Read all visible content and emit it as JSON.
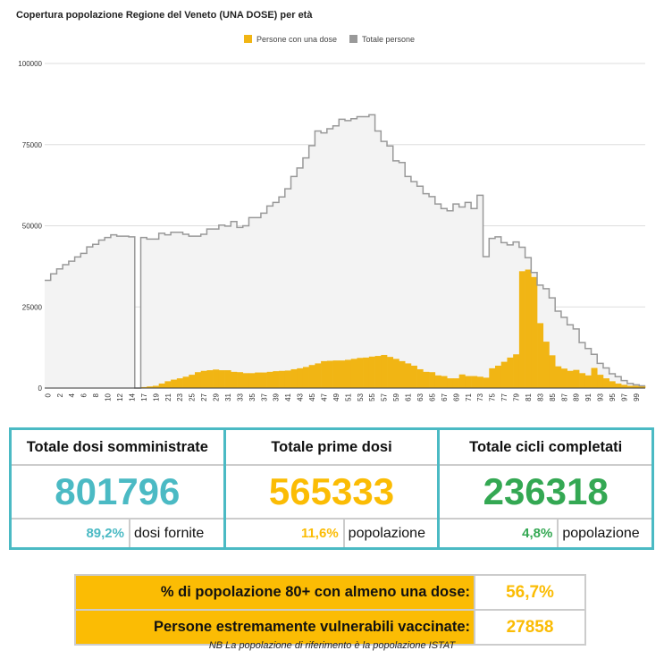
{
  "chart_data": {
    "type": "area",
    "title": "Copertura popolazione Regione del Veneto (UNA DOSE) per età",
    "legend_position": "top",
    "ylim": [
      0,
      100000
    ],
    "yticks": [
      "0",
      "25000",
      "50000",
      "75000",
      "100000"
    ],
    "grid": true,
    "categories": [
      "0",
      "1",
      "2",
      "3",
      "4",
      "5",
      "6",
      "7",
      "8",
      "9",
      "10",
      "11",
      "12",
      "13",
      "14",
      "16",
      "17",
      "18",
      "19",
      "20",
      "21",
      "22",
      "23",
      "24",
      "25",
      "26",
      "27",
      "28",
      "29",
      "30",
      "31",
      "32",
      "33",
      "34",
      "35",
      "36",
      "37",
      "38",
      "39",
      "40",
      "41",
      "42",
      "43",
      "44",
      "45",
      "46",
      "47",
      "48",
      "49",
      "50",
      "51",
      "52",
      "53",
      "54",
      "55",
      "56",
      "57",
      "58",
      "59",
      "60",
      "61",
      "62",
      "63",
      "64",
      "65",
      "66",
      "67",
      "68",
      "69",
      "70",
      "71",
      "72",
      "73",
      "74",
      "75",
      "76",
      "77",
      "78",
      "79",
      "80",
      "81",
      "82",
      "83",
      "84",
      "85",
      "86",
      "87",
      "88",
      "89",
      "90",
      "91",
      "92",
      "93",
      "94",
      "95",
      "96",
      "97",
      "98",
      "99",
      "100"
    ],
    "series": [
      {
        "name": "Persone con una dose",
        "color": "#f1b514",
        "values": [
          0,
          0,
          0,
          0,
          0,
          0,
          0,
          0,
          0,
          0,
          0,
          0,
          0,
          0,
          0,
          0,
          300,
          500,
          700,
          1400,
          2100,
          2600,
          3000,
          3500,
          4100,
          4900,
          5300,
          5500,
          5700,
          5500,
          5500,
          5000,
          4900,
          4600,
          4600,
          4800,
          4800,
          5000,
          5200,
          5300,
          5400,
          5800,
          6100,
          6500,
          7100,
          7600,
          8300,
          8400,
          8500,
          8500,
          8700,
          9000,
          9300,
          9400,
          9700,
          9900,
          10200,
          9600,
          9000,
          8300,
          7600,
          6900,
          5800,
          5000,
          4900,
          3900,
          3700,
          3000,
          3000,
          4200,
          3700,
          3700,
          3500,
          3200,
          6100,
          6900,
          8100,
          9400,
          10400,
          36000,
          36500,
          34200,
          20000,
          14300,
          10100,
          6700,
          6000,
          5300,
          5600,
          4600,
          3900,
          6200,
          4100,
          3000,
          2100,
          1400,
          1000,
          700,
          700,
          700
        ]
      },
      {
        "name": "Totale persone",
        "color": "#999999",
        "values": [
          33200,
          35200,
          36700,
          38000,
          39100,
          40400,
          41500,
          43500,
          44300,
          45600,
          46400,
          47200,
          46800,
          46800,
          46600,
          0,
          46400,
          45900,
          45900,
          47700,
          47200,
          48000,
          48000,
          47400,
          46800,
          46800,
          47400,
          49000,
          49000,
          50200,
          49900,
          51300,
          49500,
          50000,
          52500,
          52500,
          53900,
          56100,
          57200,
          58900,
          61400,
          65200,
          67800,
          70900,
          74700,
          79200,
          78600,
          79900,
          80800,
          82800,
          82400,
          83000,
          83600,
          83600,
          84200,
          79200,
          76000,
          74600,
          70000,
          69500,
          65200,
          63600,
          62200,
          59900,
          59000,
          56700,
          55300,
          54600,
          56700,
          55800,
          57200,
          55300,
          59400,
          40500,
          46100,
          46600,
          44800,
          44100,
          45000,
          43400,
          40200,
          35600,
          31700,
          30600,
          27800,
          23700,
          21800,
          19500,
          18200,
          14000,
          12200,
          10400,
          7600,
          6200,
          4400,
          3500,
          2300,
          1400,
          1000,
          700
        ]
      }
    ]
  },
  "stats": [
    {
      "title": "Totale dosi somministrate",
      "value": "801796",
      "pct": "89,2%",
      "pct_label": "dosi fornite",
      "color": "#4bbac4"
    },
    {
      "title": "Totale prime dosi",
      "value": "565333",
      "pct": "11,6%",
      "pct_label": "popolazione",
      "color": "#fbbc04"
    },
    {
      "title": "Totale cicli completati",
      "value": "236318",
      "pct": "4,8%",
      "pct_label": "popolazione",
      "color": "#34a853"
    }
  ],
  "summary": [
    {
      "label": "% di popolazione 80+ con almeno una dose:",
      "value": "56,7%"
    },
    {
      "label": "Persone estremamente vulnerabili vaccinate:",
      "value": "27858"
    }
  ],
  "note": "NB La popolazione di riferimento è la popolazione ISTAT"
}
